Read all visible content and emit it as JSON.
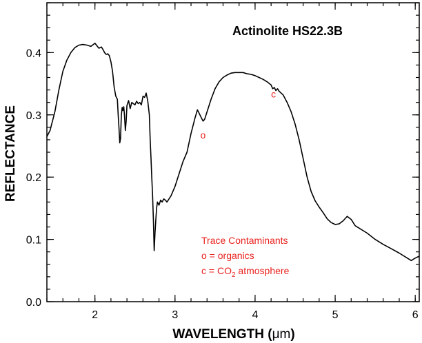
{
  "chart_data": {
    "type": "line",
    "title": "Actinolite HS22.3B",
    "xlabel_text": "WAVELENGTH (",
    "xlabel_unit": "μm",
    "xlabel_close": ")",
    "ylabel": "REFLECTANCE",
    "xlim": [
      1.4,
      6.05
    ],
    "ylim": [
      0.0,
      0.48
    ],
    "x_ticks": [
      2,
      3,
      4,
      5,
      6
    ],
    "y_ticks": [
      0.0,
      0.1,
      0.2,
      0.3,
      0.4
    ],
    "x_tick_labels": [
      "2",
      "3",
      "4",
      "5",
      "6"
    ],
    "y_tick_labels": [
      "0.0",
      "0.1",
      "0.2",
      "0.3",
      "0.4"
    ],
    "x_minor_step": 0.2,
    "y_minor_step": 0.02,
    "grid": false,
    "series": [
      {
        "color": "#000000",
        "x": [
          1.4,
          1.44,
          1.5,
          1.55,
          1.6,
          1.65,
          1.7,
          1.75,
          1.8,
          1.85,
          1.9,
          1.95,
          1.98,
          2.0,
          2.03,
          2.05,
          2.08,
          2.1,
          2.12,
          2.14,
          2.16,
          2.18,
          2.2,
          2.22,
          2.24,
          2.26,
          2.28,
          2.29,
          2.3,
          2.31,
          2.32,
          2.33,
          2.34,
          2.35,
          2.36,
          2.37,
          2.38,
          2.39,
          2.4,
          2.42,
          2.44,
          2.46,
          2.48,
          2.5,
          2.52,
          2.54,
          2.56,
          2.58,
          2.6,
          2.62,
          2.64,
          2.66,
          2.68,
          2.69,
          2.7,
          2.71,
          2.72,
          2.73,
          2.74,
          2.75,
          2.76,
          2.77,
          2.78,
          2.8,
          2.82,
          2.84,
          2.86,
          2.88,
          2.9,
          2.95,
          3.0,
          3.05,
          3.1,
          3.15,
          3.2,
          3.25,
          3.28,
          3.3,
          3.33,
          3.35,
          3.37,
          3.4,
          3.45,
          3.5,
          3.55,
          3.6,
          3.65,
          3.7,
          3.75,
          3.8,
          3.85,
          3.9,
          3.95,
          4.0,
          4.05,
          4.1,
          4.15,
          4.2,
          4.22,
          4.24,
          4.26,
          4.28,
          4.3,
          4.35,
          4.4,
          4.45,
          4.5,
          4.55,
          4.6,
          4.65,
          4.7,
          4.75,
          4.8,
          4.85,
          4.9,
          4.95,
          5.0,
          5.05,
          5.1,
          5.15,
          5.2,
          5.25,
          5.3,
          5.4,
          5.5,
          5.6,
          5.7,
          5.8,
          5.9,
          5.95,
          6.0,
          6.05
        ],
        "y": [
          0.265,
          0.275,
          0.305,
          0.34,
          0.37,
          0.388,
          0.4,
          0.408,
          0.412,
          0.413,
          0.412,
          0.41,
          0.413,
          0.415,
          0.41,
          0.407,
          0.409,
          0.405,
          0.4,
          0.397,
          0.398,
          0.395,
          0.385,
          0.37,
          0.345,
          0.33,
          0.325,
          0.3,
          0.28,
          0.255,
          0.262,
          0.3,
          0.312,
          0.307,
          0.313,
          0.298,
          0.275,
          0.29,
          0.315,
          0.323,
          0.31,
          0.32,
          0.318,
          0.316,
          0.322,
          0.318,
          0.32,
          0.316,
          0.33,
          0.328,
          0.335,
          0.322,
          0.3,
          0.26,
          0.23,
          0.2,
          0.17,
          0.13,
          0.082,
          0.11,
          0.13,
          0.15,
          0.16,
          0.155,
          0.163,
          0.16,
          0.165,
          0.163,
          0.16,
          0.17,
          0.185,
          0.205,
          0.225,
          0.24,
          0.27,
          0.295,
          0.308,
          0.303,
          0.295,
          0.29,
          0.293,
          0.305,
          0.325,
          0.342,
          0.353,
          0.36,
          0.364,
          0.367,
          0.368,
          0.368,
          0.368,
          0.366,
          0.365,
          0.363,
          0.36,
          0.357,
          0.353,
          0.348,
          0.342,
          0.344,
          0.339,
          0.342,
          0.338,
          0.332,
          0.32,
          0.305,
          0.285,
          0.26,
          0.23,
          0.2,
          0.177,
          0.162,
          0.152,
          0.143,
          0.133,
          0.127,
          0.124,
          0.125,
          0.13,
          0.137,
          0.132,
          0.122,
          0.118,
          0.11,
          0.1,
          0.092,
          0.085,
          0.078,
          0.07,
          0.066,
          0.07,
          0.073
        ]
      }
    ],
    "annotations": [
      {
        "text": "o",
        "x": 3.35,
        "y": 0.262
      },
      {
        "text": "c",
        "x": 4.23,
        "y": 0.328
      }
    ],
    "legend": {
      "heading": "Trace Contaminants",
      "line1": "o = organics",
      "line2_prefix": "c = CO",
      "line2_sub": "2",
      "line2_suffix": " atmosphere"
    }
  }
}
